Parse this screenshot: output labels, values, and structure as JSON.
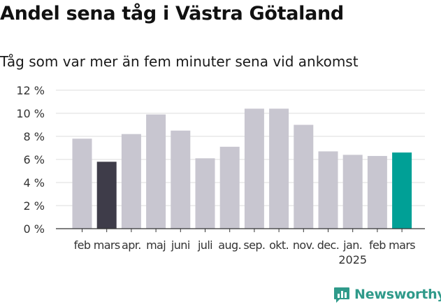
{
  "title": "Andel sena tåg i Västra Götaland",
  "subtitle": "Tåg som var mer än fem minuter sena vid ankomst",
  "brand": {
    "name": "Newsworthy",
    "color": "#2f9a8a"
  },
  "colors": {
    "bar": "#c8c6d0",
    "previous_year_bar": "#3e3c49",
    "latest_bar": "#00a096",
    "grid": "#dddddd",
    "axis": "#333333",
    "text": "#333333"
  },
  "chart_data": {
    "type": "bar",
    "categories": [
      "feb",
      "mars",
      "apr.",
      "maj",
      "juni",
      "juli",
      "aug.",
      "sep.",
      "okt.",
      "nov.",
      "dec.",
      "jan.",
      "feb",
      "mars"
    ],
    "x_sublabels": [
      "",
      "",
      "",
      "",
      "",
      "",
      "",
      "",
      "",
      "",
      "",
      "2025",
      "",
      ""
    ],
    "values": [
      7.8,
      5.8,
      8.2,
      9.9,
      8.5,
      6.1,
      7.1,
      10.4,
      10.4,
      9.0,
      6.7,
      6.4,
      6.3,
      6.6
    ],
    "highlight": {
      "1": "previous_year_bar",
      "13": "latest_bar"
    },
    "ylim": [
      0,
      12
    ],
    "yticks": [
      0,
      2,
      4,
      6,
      8,
      10,
      12
    ],
    "ytick_labels": [
      "0 %",
      "2 %",
      "4 %",
      "6 %",
      "8 %",
      "10 %",
      "12 %"
    ],
    "grid": true,
    "title": "Andel sena tåg i Västra Götaland",
    "subtitle": "Tåg som var mer än fem minuter sena vid ankomst",
    "xlabel": "",
    "ylabel": ""
  }
}
